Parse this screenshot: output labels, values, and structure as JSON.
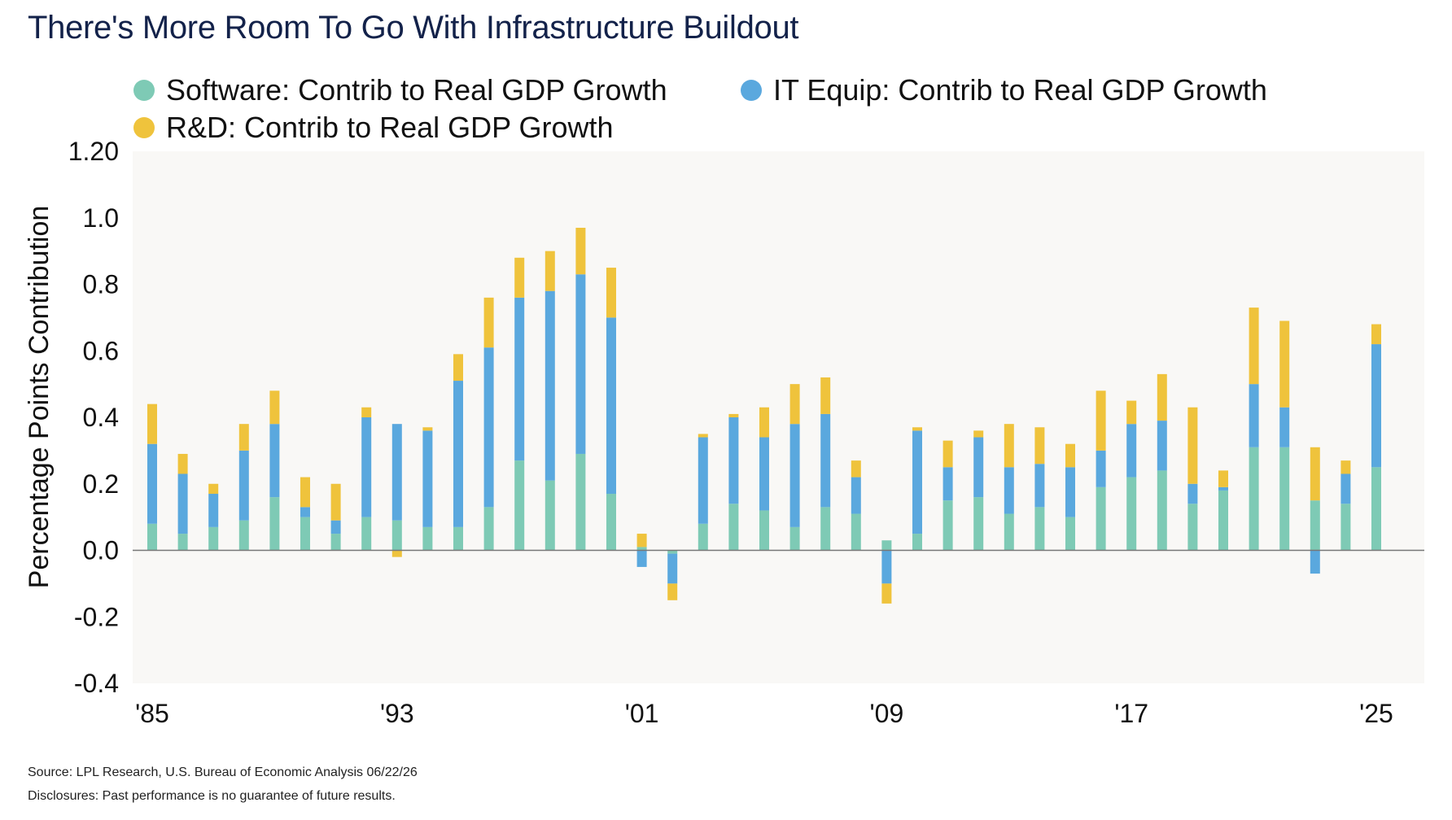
{
  "title": "There's More Room To Go With Infrastructure Buildout",
  "source": "Source: LPL Research, U.S. Bureau of Economic Analysis 06/22/26",
  "disclosure": "Disclosures: Past performance is no guarantee of future results.",
  "colors": {
    "software": "#7ecab5",
    "it_equip": "#5aa8de",
    "rd": "#efc33c",
    "plot_bg": "#f9f8f6",
    "zero_line": "#777777"
  },
  "chart_data": {
    "type": "bar",
    "stacked": true,
    "ylabel": "Percentage Points Contribution",
    "xlabel": "",
    "ylim": [
      -0.4,
      1.2
    ],
    "yticks": [
      -0.4,
      -0.2,
      0.0,
      0.2,
      0.4,
      0.6,
      0.8,
      1.0,
      1.2
    ],
    "ytick_labels": [
      "-0.4",
      "-0.2",
      "0.0",
      "0.2",
      "0.4",
      "0.6",
      "0.8",
      "1.0",
      "1.20"
    ],
    "xtick_labels": [
      "'85",
      "'93",
      "'01",
      "'09",
      "'17",
      "'25"
    ],
    "xtick_years": [
      1985,
      1993,
      2001,
      2009,
      2017,
      2025
    ],
    "grid": false,
    "legend_position": "top-left",
    "categories": [
      1985,
      1986,
      1987,
      1988,
      1989,
      1990,
      1991,
      1992,
      1993,
      1994,
      1995,
      1996,
      1997,
      1998,
      1999,
      2000,
      2001,
      2002,
      2003,
      2004,
      2005,
      2006,
      2007,
      2008,
      2009,
      2010,
      2011,
      2012,
      2013,
      2014,
      2015,
      2016,
      2017,
      2018,
      2019,
      2020,
      2021,
      2022,
      2023,
      2024,
      2025
    ],
    "series": [
      {
        "name": "Software: Contrib to Real GDP Growth",
        "color_key": "software",
        "values": [
          0.08,
          0.05,
          0.07,
          0.09,
          0.16,
          0.1,
          0.05,
          0.1,
          0.09,
          0.07,
          0.07,
          0.13,
          0.27,
          0.21,
          0.29,
          0.17,
          0.01,
          -0.01,
          0.08,
          0.14,
          0.12,
          0.07,
          0.13,
          0.11,
          0.03,
          0.05,
          0.15,
          0.16,
          0.11,
          0.13,
          0.1,
          0.19,
          0.22,
          0.24,
          0.14,
          0.18,
          0.31,
          0.31,
          0.15,
          0.14,
          0.25
        ]
      },
      {
        "name": "IT Equip: Contrib to Real GDP Growth",
        "color_key": "it_equip",
        "values": [
          0.24,
          0.18,
          0.1,
          0.21,
          0.22,
          0.03,
          0.04,
          0.3,
          0.29,
          0.29,
          0.44,
          0.48,
          0.49,
          0.57,
          0.54,
          0.53,
          -0.05,
          -0.09,
          0.26,
          0.26,
          0.22,
          0.31,
          0.28,
          0.11,
          -0.1,
          0.31,
          0.1,
          0.18,
          0.14,
          0.13,
          0.15,
          0.11,
          0.16,
          0.15,
          0.06,
          0.01,
          0.19,
          0.12,
          -0.07,
          0.09,
          0.37
        ]
      },
      {
        "name": "R&D: Contrib to Real GDP Growth",
        "color_key": "rd",
        "values": [
          0.12,
          0.06,
          0.03,
          0.08,
          0.1,
          0.09,
          0.11,
          0.03,
          -0.02,
          0.01,
          0.08,
          0.15,
          0.12,
          0.12,
          0.14,
          0.15,
          0.04,
          -0.05,
          0.01,
          0.01,
          0.09,
          0.12,
          0.11,
          0.05,
          -0.06,
          0.01,
          0.08,
          0.02,
          0.13,
          0.11,
          0.07,
          0.18,
          0.07,
          0.14,
          0.23,
          0.05,
          0.23,
          0.26,
          0.16,
          0.04,
          0.06
        ]
      }
    ]
  }
}
